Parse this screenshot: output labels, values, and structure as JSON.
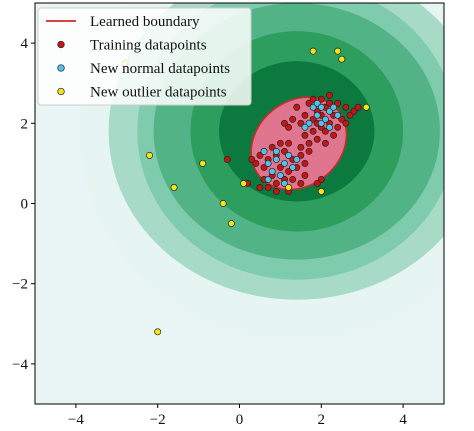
{
  "chart_data": {
    "type": "scatter",
    "title": "",
    "xlabel": "",
    "ylabel": "",
    "xlim": [
      -5,
      5
    ],
    "ylim": [
      -5,
      5
    ],
    "xticks": [
      -4,
      -2,
      0,
      2,
      4
    ],
    "yticks": [
      -4,
      -2,
      0,
      2,
      4
    ],
    "xtick_labels": [
      "−4",
      "−2",
      "0",
      "2",
      "4"
    ],
    "ytick_labels": [
      "−4",
      "−2",
      "0",
      "2",
      "4"
    ],
    "grid": false,
    "legend_position": "top-left",
    "contour": {
      "center": [
        1.4,
        1.8
      ],
      "levels": [
        {
          "rx": 5.3,
          "ry": 5.2,
          "color": "#e6f4f2"
        },
        {
          "rx": 4.6,
          "ry": 4.2,
          "color": "#a8dac8"
        },
        {
          "rx": 3.9,
          "ry": 3.7,
          "color": "#7fcbae"
        },
        {
          "rx": 3.5,
          "ry": 3.2,
          "color": "#52b486"
        },
        {
          "rx": 2.6,
          "ry": 2.5,
          "color": "#2e9e5e"
        },
        {
          "rx": 1.9,
          "ry": 1.75,
          "color": "#0c7a3f"
        }
      ],
      "frame_color": "#e8f5f4"
    },
    "boundary_region": {
      "center": [
        1.45,
        1.5
      ],
      "rx": 1.25,
      "ry": 1.05,
      "angle_deg": 40,
      "fill": "#e0758f",
      "edge": "#d62728"
    },
    "series": [
      {
        "name": "Learned boundary",
        "kind": "line",
        "color": "#d62728"
      },
      {
        "name": "Training datapoints",
        "kind": "scatter",
        "color": "#c81414",
        "points": [
          [
            0.6,
            0.9
          ],
          [
            0.7,
            1.1
          ],
          [
            0.8,
            0.7
          ],
          [
            0.9,
            1.2
          ],
          [
            1.0,
            0.9
          ],
          [
            1.1,
            1.3
          ],
          [
            1.2,
            0.8
          ],
          [
            0.5,
            1.2
          ],
          [
            0.6,
            0.6
          ],
          [
            0.9,
            0.5
          ],
          [
            1.3,
            1.1
          ],
          [
            1.4,
            0.9
          ],
          [
            1.5,
            1.2
          ],
          [
            0.8,
            1.4
          ],
          [
            1.0,
            1.5
          ],
          [
            1.1,
            0.6
          ],
          [
            0.7,
            0.4
          ],
          [
            1.3,
            0.6
          ],
          [
            0.4,
            1.0
          ],
          [
            1.2,
            1.5
          ],
          [
            1.6,
            1.0
          ],
          [
            0.3,
            1.1
          ],
          [
            1.5,
            0.5
          ],
          [
            0.9,
            0.3
          ],
          [
            1.7,
            1.3
          ],
          [
            1.8,
            2.1
          ],
          [
            1.9,
            2.3
          ],
          [
            2.0,
            1.9
          ],
          [
            2.1,
            2.4
          ],
          [
            2.2,
            2.0
          ],
          [
            1.7,
            2.5
          ],
          [
            1.6,
            2.2
          ],
          [
            2.3,
            2.2
          ],
          [
            2.4,
            2.5
          ],
          [
            2.0,
            2.6
          ],
          [
            1.8,
            1.8
          ],
          [
            2.5,
            2.1
          ],
          [
            2.6,
            2.4
          ],
          [
            2.2,
            2.7
          ],
          [
            1.5,
            2.0
          ],
          [
            1.4,
            2.4
          ],
          [
            2.7,
            2.2
          ],
          [
            2.8,
            2.3
          ],
          [
            2.9,
            2.4
          ],
          [
            2.3,
            1.7
          ],
          [
            1.9,
            1.6
          ],
          [
            2.1,
            1.5
          ],
          [
            1.3,
            2.1
          ],
          [
            2.4,
            1.9
          ],
          [
            2.6,
            2.0
          ],
          [
            1.6,
            1.7
          ],
          [
            2.0,
            2.2
          ],
          [
            1.2,
            1.9
          ],
          [
            1.1,
            2.0
          ],
          [
            1.7,
            1.5
          ],
          [
            1.5,
            1.4
          ],
          [
            1.8,
            2.6
          ],
          [
            2.2,
            2.5
          ],
          [
            1.9,
            2.0
          ],
          [
            2.1,
            1.8
          ],
          [
            -0.3,
            1.1
          ],
          [
            0.2,
            0.5
          ],
          [
            1.9,
            0.5
          ],
          [
            2.0,
            0.6
          ],
          [
            1.2,
            0.3
          ],
          [
            0.5,
            0.4
          ],
          [
            1.6,
            0.7
          ]
        ]
      },
      {
        "name": "New normal datapoints",
        "kind": "scatter",
        "color": "#4fc3e8",
        "points": [
          [
            0.7,
            1.0
          ],
          [
            0.9,
            1.1
          ],
          [
            1.1,
            1.0
          ],
          [
            0.8,
            0.8
          ],
          [
            1.2,
            1.2
          ],
          [
            0.6,
            1.3
          ],
          [
            1.0,
            0.7
          ],
          [
            1.3,
            0.9
          ],
          [
            0.9,
            1.3
          ],
          [
            1.4,
            1.1
          ],
          [
            0.7,
            0.6
          ],
          [
            1.1,
            0.5
          ],
          [
            1.9,
            2.2
          ],
          [
            2.0,
            2.0
          ],
          [
            2.2,
            2.3
          ],
          [
            1.8,
            2.4
          ],
          [
            2.1,
            2.1
          ],
          [
            1.7,
            2.0
          ],
          [
            2.3,
            2.4
          ],
          [
            1.9,
            2.5
          ],
          [
            2.4,
            2.2
          ],
          [
            1.6,
            1.9
          ],
          [
            2.2,
            1.9
          ],
          [
            2.0,
            2.4
          ]
        ]
      },
      {
        "name": "New outlier datapoints",
        "kind": "scatter",
        "color": "#f4e418",
        "points": [
          [
            -2.2,
            1.2
          ],
          [
            -1.6,
            0.4
          ],
          [
            -2.8,
            3.5
          ],
          [
            -0.9,
            1.0
          ],
          [
            -0.4,
            0.0
          ],
          [
            -0.2,
            -0.5
          ],
          [
            1.8,
            3.8
          ],
          [
            2.5,
            3.6
          ],
          [
            2.4,
            3.8
          ],
          [
            3.1,
            2.4
          ],
          [
            2.0,
            0.3
          ],
          [
            1.2,
            0.4
          ],
          [
            -2.0,
            -3.2
          ],
          [
            0.1,
            0.5
          ]
        ]
      }
    ]
  }
}
